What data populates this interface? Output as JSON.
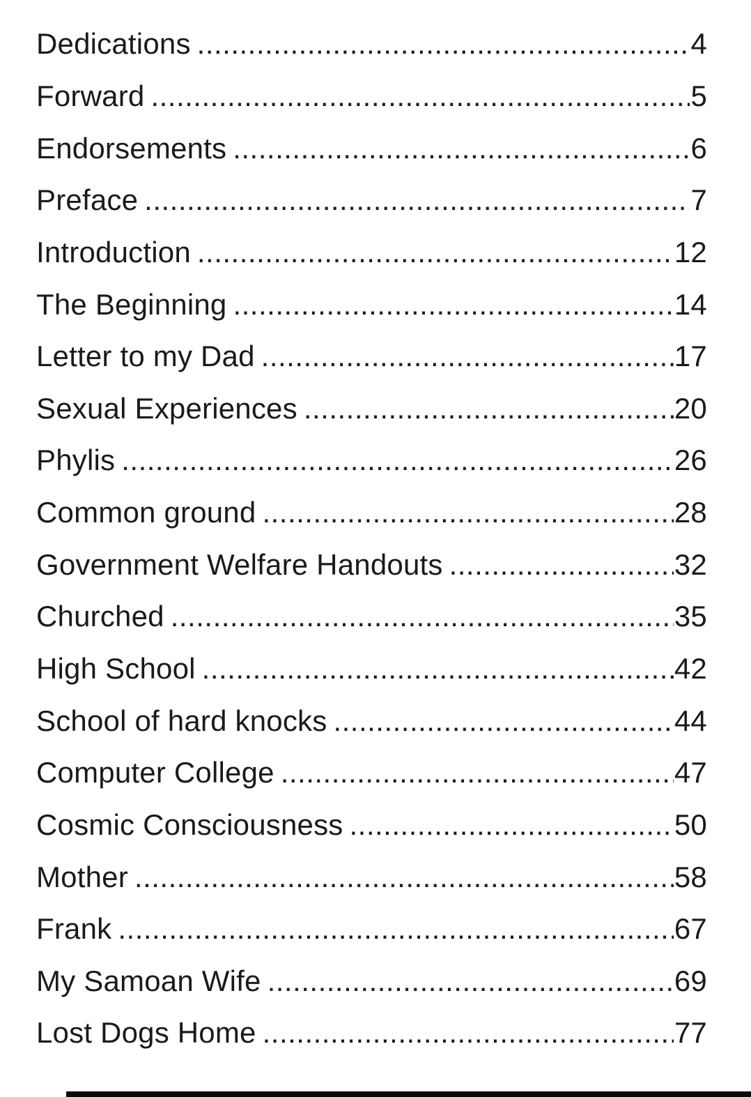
{
  "page": {
    "background_color": "#ffffff",
    "text_color": "#1a1a1a"
  },
  "toc": {
    "entries": [
      {
        "title": "Dedications",
        "page": "4"
      },
      {
        "title": "Forward",
        "page": "5"
      },
      {
        "title": "Endorsements",
        "page": "6"
      },
      {
        "title": "Preface",
        "page": "7"
      },
      {
        "title": "Introduction",
        "page": "12"
      },
      {
        "title": "The Beginning",
        "page": "14"
      },
      {
        "title": "Letter to my Dad",
        "page": "17"
      },
      {
        "title": "Sexual Experiences",
        "page": "20"
      },
      {
        "title": "Phylis",
        "page": "26"
      },
      {
        "title": "Common ground",
        "page": "28"
      },
      {
        "title": "Government Welfare Handouts",
        "page": "32"
      },
      {
        "title": "Churched",
        "page": "35"
      },
      {
        "title": "High School",
        "page": "42"
      },
      {
        "title": "School of hard knocks",
        "page": "44"
      },
      {
        "title": "Computer College",
        "page": "47"
      },
      {
        "title": "Cosmic Consciousness",
        "page": "50"
      },
      {
        "title": "Mother",
        "page": "58"
      },
      {
        "title": "Frank",
        "page": "67"
      },
      {
        "title": "My Samoan Wife",
        "page": "69"
      },
      {
        "title": "Lost Dogs Home",
        "page": "77"
      }
    ]
  }
}
